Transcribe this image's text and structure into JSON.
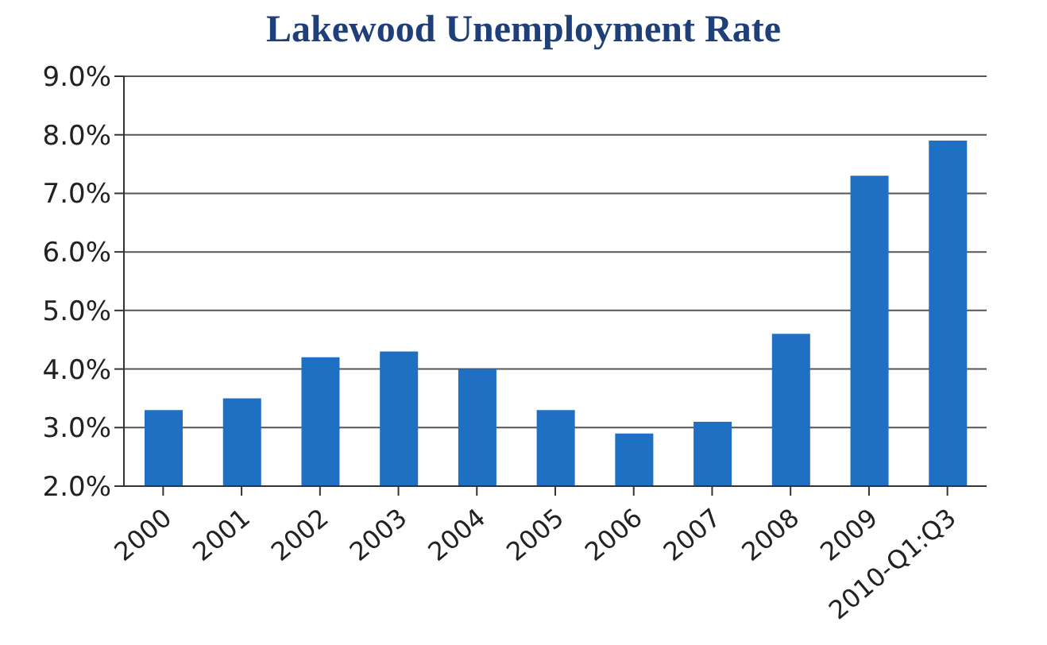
{
  "chart_data": {
    "type": "bar",
    "title": "Lakewood Unemployment Rate",
    "categories": [
      "2000",
      "2001",
      "2002",
      "2003",
      "2004",
      "2005",
      "2006",
      "2007",
      "2008",
      "2009",
      "2010-Q1:Q3"
    ],
    "values": [
      3.3,
      3.5,
      4.2,
      4.3,
      4.0,
      3.3,
      2.9,
      3.1,
      4.6,
      7.3,
      7.9
    ],
    "color": "#1f6fc2",
    "ylim": [
      2,
      9
    ],
    "yticks": [
      {
        "value": 2,
        "label": "2.0%"
      },
      {
        "value": 3,
        "label": "3.0%"
      },
      {
        "value": 4,
        "label": "4.0%"
      },
      {
        "value": 5,
        "label": "5.0%"
      },
      {
        "value": 6,
        "label": "6.0%"
      },
      {
        "value": 7,
        "label": "7.0%"
      },
      {
        "value": 8,
        "label": "8.0%"
      },
      {
        "value": 9,
        "label": "9.0%"
      }
    ],
    "grid": "y"
  }
}
